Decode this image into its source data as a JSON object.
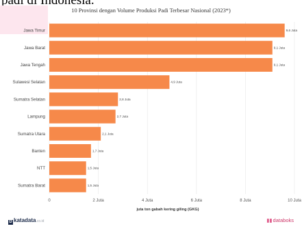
{
  "header": {
    "heading_fragment": "padi di Indonesia."
  },
  "colors": {
    "bar": "#f6894a",
    "highlight_block": "#fde6ee",
    "grid": "#e6e6e6"
  },
  "chart_data": {
    "type": "bar",
    "orientation": "horizontal",
    "title": "10 Provinsi dengan Volume Produksi Padi Terbesar Nasional (2023*)",
    "xlabel": "juta ton gabah kering giling (GKG)",
    "ylabel": "",
    "xlim": [
      0,
      10
    ],
    "x_ticks": [
      "0",
      "2 Juta",
      "4 Juta",
      "6 Juta",
      "8 Juta",
      "10 Juta"
    ],
    "grid": true,
    "categories": [
      "Jawa Timur",
      "Jawa Barat",
      "Jawa Tengah",
      "Sulawesi Selatan",
      "Sumatra Selatan",
      "Lampung",
      "Sumatra Utara",
      "Banten",
      "NTT",
      "Sumatra Barat"
    ],
    "values": [
      9.6,
      9.1,
      9.1,
      4.9,
      2.8,
      2.7,
      2.1,
      1.7,
      1.5,
      1.5
    ],
    "data_labels": [
      "9,6 Juta",
      "9,1 Juta",
      "9,1 Juta",
      "4,9 Juta",
      "2,8 Juta",
      "2,7 Juta",
      "2,1 Juta",
      "1,7 Juta",
      "1,5 Juta",
      "1,5 Juta"
    ]
  },
  "footer": {
    "source_brand": "katadata",
    "source_brand_mark": "D",
    "source_domain": ".co.id",
    "publisher_brand": "databoks",
    "publisher_icon": "chart-bars-icon"
  }
}
